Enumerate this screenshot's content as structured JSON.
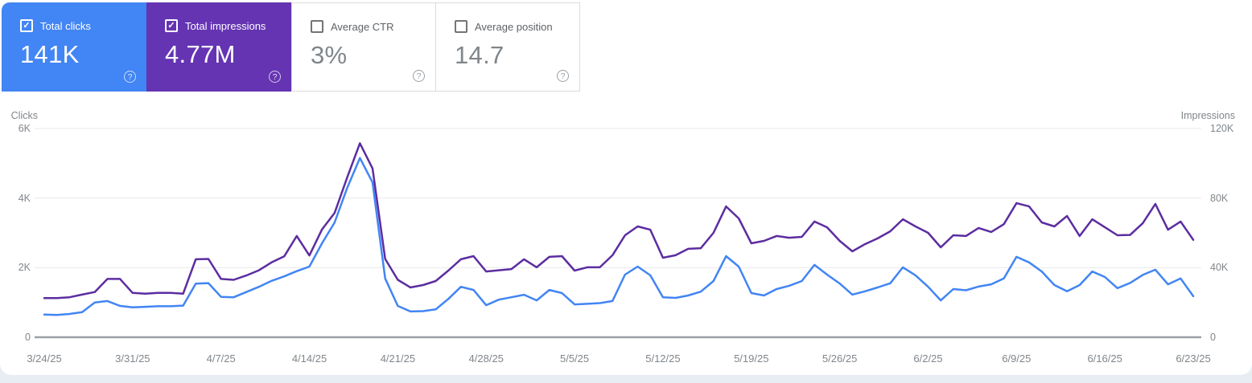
{
  "icons": {
    "check": "✓",
    "help": "?"
  },
  "colors": {
    "clicks": "#4285f4",
    "impressions_card": "#6534b2",
    "impressions_line": "#5c2da0",
    "gridline": "#e9eaed",
    "zero_axis": "#9aa0a6",
    "page_background": "#e8ecf3"
  },
  "cards": [
    {
      "label": "Total clicks",
      "value": "141K",
      "checked": true,
      "color": "#4285f4"
    },
    {
      "label": "Total impressions",
      "value": "4.77M",
      "checked": true,
      "color": "#6534b2"
    },
    {
      "label": "Average CTR",
      "value": "3%",
      "checked": false
    },
    {
      "label": "Average position",
      "value": "14.7",
      "checked": false
    }
  ],
  "chart_data": {
    "type": "line",
    "title": "",
    "legend": "none",
    "grid": true,
    "x": [
      "3/24/25",
      "3/25/25",
      "3/26/25",
      "3/27/25",
      "3/28/25",
      "3/29/25",
      "3/30/25",
      "3/31/25",
      "4/1/25",
      "4/2/25",
      "4/3/25",
      "4/4/25",
      "4/5/25",
      "4/6/25",
      "4/7/25",
      "4/8/25",
      "4/9/25",
      "4/10/25",
      "4/11/25",
      "4/12/25",
      "4/13/25",
      "4/14/25",
      "4/15/25",
      "4/16/25",
      "4/17/25",
      "4/18/25",
      "4/19/25",
      "4/20/25",
      "4/21/25",
      "4/22/25",
      "4/23/25",
      "4/24/25",
      "4/25/25",
      "4/26/25",
      "4/27/25",
      "4/28/25",
      "4/29/25",
      "4/30/25",
      "5/1/25",
      "5/2/25",
      "5/3/25",
      "5/4/25",
      "5/5/25",
      "5/6/25",
      "5/7/25",
      "5/8/25",
      "5/9/25",
      "5/10/25",
      "5/11/25",
      "5/12/25",
      "5/13/25",
      "5/14/25",
      "5/15/25",
      "5/16/25",
      "5/17/25",
      "5/18/25",
      "5/19/25",
      "5/20/25",
      "5/21/25",
      "5/22/25",
      "5/23/25",
      "5/24/25",
      "5/25/25",
      "5/26/25",
      "5/27/25",
      "5/28/25",
      "5/29/25",
      "5/30/25",
      "5/31/25",
      "6/1/25",
      "6/2/25",
      "6/3/25",
      "6/4/25",
      "6/5/25",
      "6/6/25",
      "6/7/25",
      "6/8/25",
      "6/9/25",
      "6/10/25",
      "6/11/25",
      "6/12/25",
      "6/13/25",
      "6/14/25",
      "6/15/25",
      "6/16/25",
      "6/17/25",
      "6/18/25",
      "6/19/25",
      "6/20/25",
      "6/21/25",
      "6/22/25",
      "6/23/25"
    ],
    "x_ticks": [
      {
        "label": "3/24/25",
        "index": 0
      },
      {
        "label": "3/31/25",
        "index": 7
      },
      {
        "label": "4/7/25",
        "index": 14
      },
      {
        "label": "4/14/25",
        "index": 21
      },
      {
        "label": "4/21/25",
        "index": 28
      },
      {
        "label": "4/28/25",
        "index": 35
      },
      {
        "label": "5/5/25",
        "index": 42
      },
      {
        "label": "5/12/25",
        "index": 49
      },
      {
        "label": "5/19/25",
        "index": 56
      },
      {
        "label": "5/26/25",
        "index": 63
      },
      {
        "label": "6/2/25",
        "index": 70
      },
      {
        "label": "6/9/25",
        "index": 77
      },
      {
        "label": "6/16/25",
        "index": 84
      },
      {
        "label": "6/23/25",
        "index": 91
      }
    ],
    "left_axis": {
      "label": "Clicks",
      "max": 6000,
      "ticks": [
        {
          "value": 0,
          "label": "0"
        },
        {
          "value": 2000,
          "label": "2K"
        },
        {
          "value": 4000,
          "label": "4K"
        },
        {
          "value": 6000,
          "label": "6K"
        }
      ]
    },
    "right_axis": {
      "label": "Impressions",
      "max": 120000,
      "ticks": [
        {
          "value": 0,
          "label": "0"
        },
        {
          "value": 40000,
          "label": "40K"
        },
        {
          "value": 80000,
          "label": "80K"
        },
        {
          "value": 120000,
          "label": "120K"
        }
      ]
    },
    "series": [
      {
        "name": "Total clicks",
        "axis": "left",
        "color": "#4285f4",
        "values": [
          650,
          640,
          670,
          720,
          1000,
          1040,
          900,
          860,
          875,
          890,
          890,
          910,
          1540,
          1555,
          1160,
          1150,
          1300,
          1450,
          1620,
          1750,
          1900,
          2030,
          2700,
          3300,
          4300,
          5150,
          4450,
          1690,
          900,
          740,
          750,
          800,
          1100,
          1450,
          1360,
          920,
          1080,
          1150,
          1220,
          1060,
          1360,
          1270,
          945,
          960,
          980,
          1040,
          1800,
          2030,
          1780,
          1150,
          1130,
          1200,
          1310,
          1615,
          2330,
          2030,
          1270,
          1200,
          1385,
          1480,
          1615,
          2080,
          1800,
          1545,
          1225,
          1320,
          1430,
          1550,
          2010,
          1780,
          1450,
          1060,
          1385,
          1350,
          1455,
          1520,
          1690,
          2310,
          2150,
          1890,
          1500,
          1320,
          1500,
          1890,
          1730,
          1410,
          1560,
          1790,
          1940,
          1520,
          1690,
          1180
        ]
      },
      {
        "name": "Total impressions",
        "axis": "right",
        "color": "#5c2da0",
        "values": [
          22500,
          22500,
          23000,
          24500,
          26000,
          33500,
          33500,
          25500,
          25000,
          25500,
          25500,
          25000,
          44800,
          45000,
          33500,
          33000,
          35500,
          38500,
          43000,
          46500,
          58200,
          47000,
          62000,
          71500,
          92000,
          111500,
          97000,
          45000,
          33000,
          28600,
          30000,
          32300,
          38300,
          44800,
          46600,
          37800,
          38500,
          39200,
          44800,
          40200,
          46200,
          46600,
          38300,
          40200,
          40200,
          47100,
          58600,
          63700,
          61800,
          45700,
          47100,
          50800,
          51200,
          60000,
          75200,
          68300,
          54000,
          55400,
          58200,
          57200,
          57700,
          66500,
          63200,
          55400,
          49400,
          53500,
          56800,
          60900,
          67800,
          63700,
          60000,
          51700,
          58600,
          58200,
          62800,
          60500,
          65000,
          77100,
          75200,
          66000,
          63700,
          69700,
          58200,
          67800,
          63200,
          58600,
          58800,
          65500,
          76600,
          61800,
          66500,
          56000
        ]
      }
    ]
  }
}
